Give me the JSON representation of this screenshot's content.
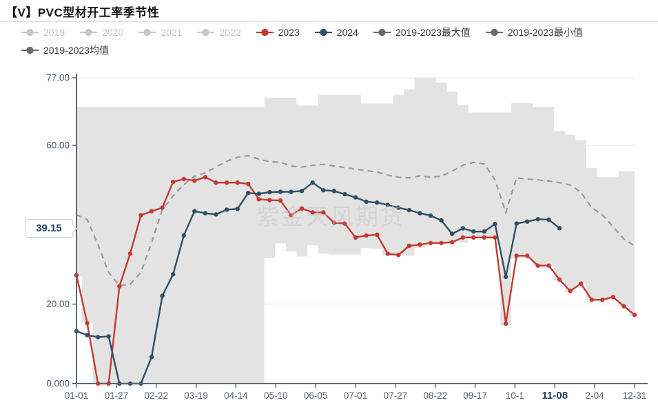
{
  "page": {
    "title": "【V】PVC型材开工率季节性",
    "watermark": "紫金天风期货"
  },
  "legend": {
    "items": [
      {
        "label": "2019",
        "marker_color": "#c7c7c7",
        "text_color": "#c3c3c3",
        "active": false
      },
      {
        "label": "2020",
        "marker_color": "#c7c7c7",
        "text_color": "#c3c3c3",
        "active": false
      },
      {
        "label": "2021",
        "marker_color": "#c7c7c7",
        "text_color": "#c3c3c3",
        "active": false
      },
      {
        "label": "2022",
        "marker_color": "#c7c7c7",
        "text_color": "#c3c3c3",
        "active": false
      },
      {
        "label": "2023",
        "marker_color": "#c43a32",
        "text_color": "#333333",
        "active": true
      },
      {
        "label": "2024",
        "marker_color": "#304e63",
        "text_color": "#333333",
        "active": true
      },
      {
        "label": "2019-2023最大值",
        "marker_color": "#6b6b6b",
        "text_color": "#333333",
        "active": true
      },
      {
        "label": "2019-2023最小值",
        "marker_color": "#6b6b6b",
        "text_color": "#333333",
        "active": true
      },
      {
        "label": "2019-2023均值",
        "marker_color": "#6b6b6b",
        "text_color": "#333333",
        "active": true
      }
    ]
  },
  "y_axis": {
    "labels": [
      {
        "text": "77.00",
        "value": 77
      },
      {
        "text": "60.00",
        "value": 60
      },
      {
        "text": "20.00",
        "value": 20
      },
      {
        "text": "0.000",
        "value": 0
      }
    ],
    "callout": {
      "text": "39.15",
      "value": 39.15
    }
  },
  "x_axis": {
    "labels": [
      "01-01",
      "01-27",
      "02-22",
      "03-19",
      "04-14",
      "05-10",
      "06-05",
      "07-01",
      "07-27",
      "08-22",
      "09-17",
      "10-1",
      "11-08",
      "2-04",
      "12-31"
    ],
    "emphasized_label": "11-08"
  },
  "chart_data": {
    "type": "line",
    "title": "【V】PVC型材开工率季节性",
    "xlabel": "",
    "ylabel": "",
    "ylim": [
      0,
      77
    ],
    "y_ticks": [
      0,
      20,
      39.15,
      60,
      77
    ],
    "grid": true,
    "legend_position": "top",
    "n_points": 53,
    "x_tick_labels": [
      "01-01",
      "01-27",
      "02-22",
      "03-19",
      "04-14",
      "05-10",
      "06-05",
      "07-01",
      "07-27",
      "08-22",
      "09-17",
      "10-1",
      "11-08",
      "2-04",
      "12-31"
    ],
    "band_color": "#e3e3e3",
    "series": [
      {
        "name": "2019-2023最大值",
        "role": "band_top",
        "color": "#e3e3e3",
        "values": [
          69.7,
          69.7,
          69.7,
          69.7,
          69.7,
          69.7,
          69.7,
          69.7,
          69.7,
          69.7,
          69.7,
          69.7,
          69.7,
          69.7,
          69.7,
          69.7,
          69.7,
          69.7,
          72.0,
          72.0,
          72.0,
          70.0,
          70.0,
          72.7,
          72.7,
          72.7,
          72.7,
          70.5,
          70.5,
          70.5,
          72.7,
          74.1,
          77.0,
          77.0,
          75.8,
          73.5,
          70.2,
          68.3,
          68.3,
          68.3,
          68.3,
          70.6,
          70.6,
          69.7,
          69.7,
          63.6,
          62.7,
          61.3,
          54.3,
          52.0,
          52.0,
          53.5,
          53.5
        ]
      },
      {
        "name": "2019-2023最小值",
        "role": "band_bottom",
        "color": "#e3e3e3",
        "values": [
          27.0,
          15.4,
          0,
          0,
          0,
          0,
          0,
          0,
          0,
          0,
          0,
          0,
          0,
          0,
          0,
          0,
          0,
          0,
          31.6,
          35.3,
          33.3,
          32.0,
          34.8,
          32.7,
          32.5,
          32.5,
          32.5,
          34.1,
          33.9,
          32.2,
          32.2,
          32.2,
          34.1,
          35.3,
          35.3,
          35.5,
          35.5,
          36.5,
          36.5,
          36.5,
          14.6,
          31.5,
          31.5,
          29.5,
          29.5,
          26.0,
          23.0,
          25.0,
          21.0,
          21.0,
          21.5,
          19.3,
          17.0
        ]
      },
      {
        "name": "2019-2023均值",
        "role": "dashed_line",
        "color": "#9a9a9a",
        "values": [
          42.5,
          41.3,
          35.0,
          28.0,
          24.7,
          25.0,
          28.0,
          35.5,
          43.8,
          47.3,
          50.1,
          52.2,
          53.1,
          54.5,
          56.0,
          57.0,
          57.4,
          56.5,
          55.9,
          55.7,
          54.8,
          54.5,
          55.0,
          55.2,
          54.8,
          54.4,
          54.0,
          53.6,
          53.3,
          52.5,
          52.0,
          51.8,
          52.3,
          52.0,
          52.2,
          53.5,
          55.0,
          55.7,
          55.3,
          51.3,
          43.1,
          51.8,
          51.5,
          51.3,
          51.0,
          50.6,
          50.0,
          48.2,
          44.3,
          42.5,
          39.5,
          36.4,
          34.7
        ]
      },
      {
        "name": "2023",
        "role": "marker_line",
        "color": "#c43a32",
        "values": [
          27.3,
          15.2,
          0,
          0,
          24.5,
          32.7,
          42.4,
          43.4,
          44.3,
          50.8,
          51.5,
          51.1,
          52.0,
          50.6,
          50.6,
          50.6,
          50.3,
          46.4,
          46.2,
          46.1,
          42.4,
          44.1,
          43.1,
          43.1,
          40.5,
          40.3,
          36.8,
          37.3,
          37.5,
          32.7,
          32.4,
          34.7,
          35.0,
          35.4,
          35.4,
          35.6,
          36.8,
          36.8,
          36.8,
          36.8,
          15.1,
          32.2,
          32.2,
          29.7,
          29.7,
          26.2,
          23.3,
          25.2,
          21.1,
          21.1,
          21.8,
          19.5,
          17.3
        ]
      },
      {
        "name": "2024",
        "role": "marker_line",
        "color": "#304e63",
        "values": [
          13.2,
          12.2,
          11.7,
          11.9,
          0,
          0,
          0,
          6.7,
          22.1,
          27.5,
          37.3,
          43.4,
          42.9,
          42.6,
          43.8,
          44.0,
          48.0,
          47.8,
          48.2,
          48.3,
          48.3,
          48.5,
          50.6,
          48.7,
          48.5,
          47.7,
          46.9,
          45.8,
          45.6,
          45.0,
          44.3,
          43.7,
          42.9,
          42.3,
          41.1,
          37.7,
          39.1,
          38.3,
          38.3,
          40.2,
          26.9,
          40.3,
          40.8,
          41.4,
          41.3,
          39.15
        ]
      }
    ],
    "latest_value_marker": {
      "series": "2024",
      "value": 39.15,
      "date": "11-08"
    }
  },
  "colors": {
    "grid_line": "#e8e8e8",
    "axis_line": "#5c6672",
    "y_label": "#44546a",
    "x_label": "#54626e",
    "x_label_emphasis": "#1b3c5e"
  }
}
